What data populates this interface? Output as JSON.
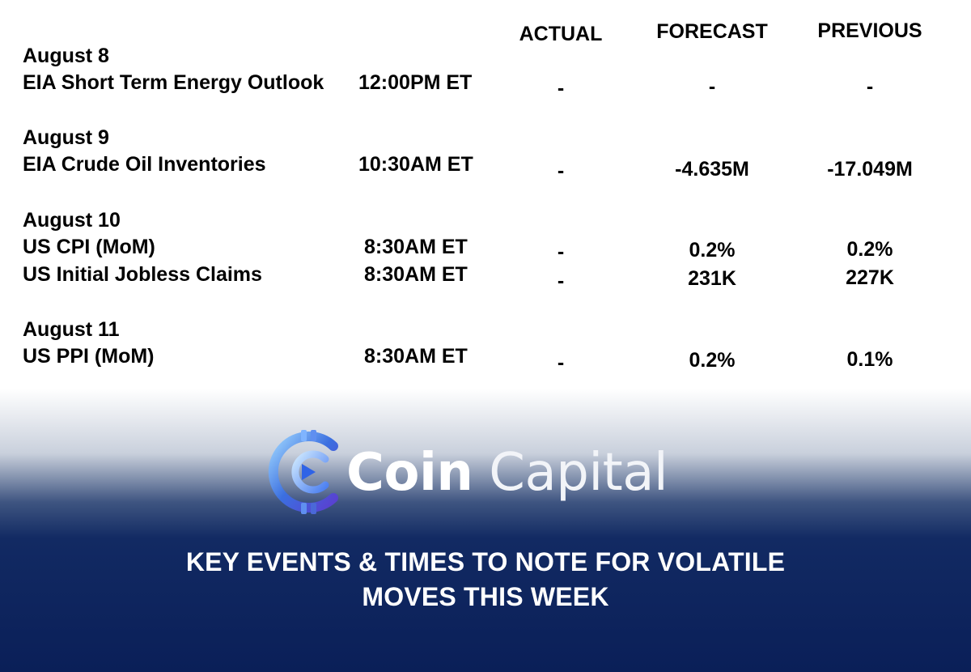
{
  "columns": {
    "actual": "ACTUAL",
    "forecast": "FORECAST",
    "previous": "PREVIOUS"
  },
  "days": [
    {
      "date": "August 8",
      "events": [
        {
          "name": "EIA Short Term Energy Outlook",
          "time": "12:00PM ET",
          "actual": "-",
          "forecast": "-",
          "previous": "-"
        }
      ]
    },
    {
      "date": "August 9",
      "events": [
        {
          "name": "EIA Crude Oil Inventories",
          "time": "10:30AM ET",
          "actual": "-",
          "forecast": "-4.635M",
          "previous": "-17.049M"
        }
      ]
    },
    {
      "date": "August 10",
      "events": [
        {
          "name": "US CPI (MoM)",
          "time": "8:30AM ET",
          "actual": "-",
          "forecast": "0.2%",
          "previous": "0.2%"
        },
        {
          "name": "US Initial Jobless Claims",
          "time": "8:30AM ET",
          "actual": "-",
          "forecast": "231K",
          "previous": "227K"
        }
      ]
    },
    {
      "date": "August 11",
      "events": [
        {
          "name": "US PPI (MoM)",
          "time": "8:30AM ET",
          "actual": "-",
          "forecast": "0.2%",
          "previous": "0.1%"
        }
      ]
    }
  ],
  "brand": {
    "word1": "Coin",
    "word2": "Capital",
    "colors": {
      "ring": "#3b6fe0",
      "ring_light": "#8ec8ff",
      "navy": "#0a1f58"
    }
  },
  "footer": {
    "line1": "KEY EVENTS & TIMES TO NOTE FOR VOLATILE",
    "line2": "MOVES THIS WEEK"
  }
}
